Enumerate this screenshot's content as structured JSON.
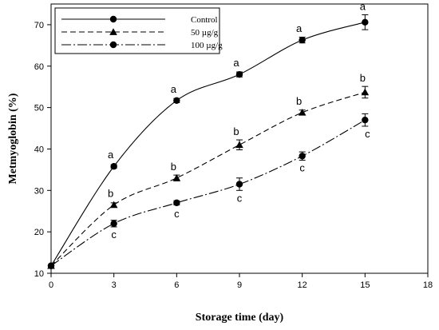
{
  "chart_data": {
    "type": "line",
    "xlabel": "Storage time (day)",
    "ylabel": "Metmyoglobin (%)",
    "xlim": [
      0,
      18
    ],
    "ylim": [
      10,
      75
    ],
    "xticks": [
      0,
      3,
      6,
      9,
      12,
      15,
      18
    ],
    "yticks": [
      10,
      20,
      30,
      40,
      50,
      60,
      70
    ],
    "legend_position": "top-left",
    "series": [
      {
        "name": "Control",
        "marker": "circle",
        "line": "solid",
        "x": [
          0,
          3,
          6,
          9,
          12,
          15
        ],
        "y": [
          11.8,
          35.8,
          51.7,
          58.0,
          66.3,
          70.6
        ],
        "err": [
          0,
          0.4,
          0.5,
          0.6,
          0.7,
          1.8
        ],
        "letters": [
          "",
          "a",
          "a",
          "a",
          "a",
          "a"
        ],
        "letter_side": "above"
      },
      {
        "name": "50 µg/g",
        "marker": "triangle",
        "line": "dashed",
        "x": [
          0,
          3,
          6,
          9,
          12,
          15
        ],
        "y": [
          11.8,
          26.5,
          33.0,
          41.0,
          48.8,
          53.7
        ],
        "err": [
          0,
          0.5,
          0.7,
          1.2,
          0.6,
          1.4
        ],
        "letters": [
          "",
          "b",
          "b",
          "b",
          "b",
          "b"
        ],
        "letter_side": "above"
      },
      {
        "name": "100 µg/g",
        "marker": "circle",
        "line": "dashdot",
        "x": [
          0,
          3,
          6,
          9,
          12,
          15
        ],
        "y": [
          11.8,
          22.0,
          27.0,
          31.5,
          38.3,
          47.0
        ],
        "err": [
          0,
          0.8,
          0.5,
          1.5,
          1.0,
          1.5
        ],
        "letters": [
          "",
          "c",
          "c",
          "c",
          "c",
          "c"
        ],
        "letter_side": "below"
      }
    ]
  }
}
